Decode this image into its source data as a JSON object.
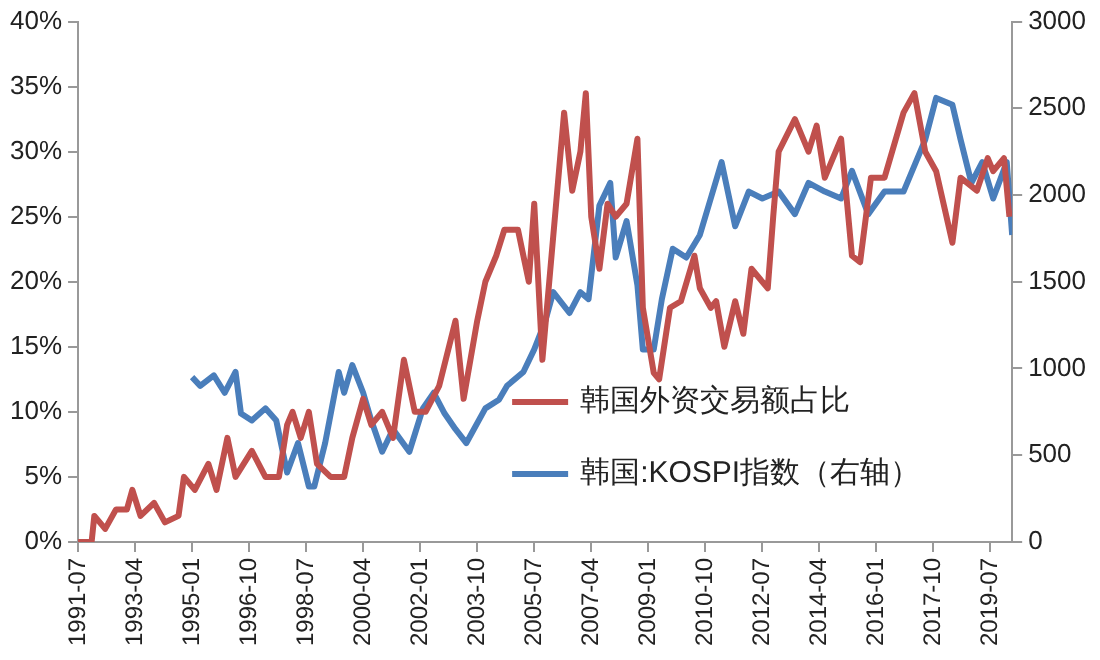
{
  "chart_data": {
    "type": "line",
    "x": [
      "1991-07",
      "1991-12",
      "1992-01",
      "1992-05",
      "1992-09",
      "1993-01",
      "1993-03",
      "1993-06",
      "1993-11",
      "1994-03",
      "1994-08",
      "1994-10",
      "1995-02",
      "1995-07",
      "1995-10",
      "1996-02",
      "1996-05",
      "1996-11",
      "1997-04",
      "1997-09",
      "1997-12",
      "1998-02",
      "1998-05",
      "1998-08",
      "1998-11",
      "1999-04",
      "1999-09",
      "1999-12",
      "2000-04",
      "2000-07",
      "2000-11",
      "2001-03",
      "2001-07",
      "2001-11",
      "2002-03",
      "2002-08",
      "2003-02",
      "2003-05",
      "2003-10",
      "2004-01",
      "2004-05",
      "2004-08",
      "2005-01",
      "2005-05",
      "2005-07",
      "2005-10",
      "2006-06",
      "2006-09",
      "2006-12",
      "2007-02",
      "2007-04",
      "2007-07",
      "2007-10",
      "2008-01",
      "2008-05",
      "2008-09",
      "2008-11",
      "2009-03",
      "2009-05",
      "2009-09",
      "2010-01",
      "2010-06",
      "2010-08",
      "2010-12",
      "2011-02",
      "2011-05",
      "2011-09",
      "2011-12",
      "2012-03",
      "2012-09",
      "2012-11",
      "2013-01",
      "2013-07",
      "2013-12",
      "2014-03",
      "2014-06",
      "2014-12",
      "2015-04",
      "2015-07",
      "2015-11",
      "2016-04",
      "2016-11",
      "2017-03",
      "2017-07",
      "2017-11",
      "2018-05",
      "2018-08",
      "2019-02",
      "2019-06",
      "2019-08",
      "2019-12",
      "2020-02"
    ],
    "series": [
      {
        "name": "韩国外资交易额占比",
        "color": "#c0504d",
        "values": [
          0,
          0,
          2,
          1,
          2.5,
          2.5,
          4,
          2,
          3,
          1.5,
          2,
          5,
          4,
          6,
          4,
          8,
          5,
          7,
          5,
          5,
          9,
          10,
          8,
          10,
          6,
          5,
          5,
          8,
          11,
          9,
          10,
          8,
          14,
          10,
          10,
          12,
          17,
          11,
          17,
          20,
          22,
          24,
          24,
          20,
          26,
          14,
          33,
          27,
          30,
          34.5,
          25,
          21,
          26,
          25,
          26,
          31,
          18,
          13,
          12.5,
          18,
          18.5,
          22,
          19.5,
          18,
          18.5,
          15,
          18.5,
          16,
          21,
          19.5,
          25,
          30,
          32.5,
          30,
          32,
          28,
          31,
          22,
          21.5,
          28,
          28,
          33,
          34.5,
          30,
          28.5,
          23,
          28,
          27,
          29.5,
          28.5,
          29.5,
          25
        ]
      },
      {
        "name": "韩国:KOSPI指数（右轴）",
        "color": "#4a7ebb",
        "axis": "y2",
        "x": [
          "1995-01",
          "1995-04",
          "1995-09",
          "1996-01",
          "1996-05",
          "1996-07",
          "1996-11",
          "1997-04",
          "1997-08",
          "1997-12",
          "1998-04",
          "1998-08",
          "1998-10",
          "1999-02",
          "1999-07",
          "1999-09",
          "1999-12",
          "2000-04",
          "2000-07",
          "2000-11",
          "2001-03",
          "2001-09",
          "2002-02",
          "2002-06",
          "2002-10",
          "2003-02",
          "2003-06",
          "2004-01",
          "2004-06",
          "2004-09",
          "2005-03",
          "2005-07",
          "2005-11",
          "2006-02",
          "2006-08",
          "2006-12",
          "2007-03",
          "2007-07",
          "2007-11",
          "2008-01",
          "2008-05",
          "2008-09",
          "2008-11",
          "2009-03",
          "2009-06",
          "2009-10",
          "2010-03",
          "2010-08",
          "2010-12",
          "2011-04",
          "2011-09",
          "2012-02",
          "2012-07",
          "2013-01",
          "2013-07",
          "2013-12",
          "2014-06",
          "2014-12",
          "2015-04",
          "2015-10",
          "2016-04",
          "2016-11",
          "2017-07",
          "2017-11",
          "2018-05",
          "2018-08",
          "2018-12",
          "2019-04",
          "2019-08",
          "2020-01",
          "2020-03"
        ],
        "values": [
          950,
          900,
          960,
          860,
          980,
          740,
          700,
          770,
          700,
          400,
          570,
          320,
          320,
          570,
          980,
          860,
          1020,
          860,
          700,
          520,
          650,
          520,
          770,
          860,
          740,
          650,
          570,
          770,
          820,
          900,
          980,
          1110,
          1270,
          1440,
          1320,
          1440,
          1400,
          1940,
          2070,
          1640,
          1850,
          1480,
          1110,
          1110,
          1400,
          1690,
          1640,
          1770,
          1980,
          2190,
          1820,
          2020,
          1980,
          2020,
          1890,
          2070,
          2020,
          1980,
          2140,
          1890,
          2020,
          2020,
          2320,
          2560,
          2520,
          2320,
          2070,
          2190,
          1980,
          2190,
          1770
        ]
      }
    ],
    "xlim": [
      "1991-07",
      "2020-03"
    ],
    "xticks": [
      "1991-07",
      "1993-04",
      "1995-01",
      "1996-10",
      "1998-07",
      "2000-04",
      "2002-01",
      "2003-10",
      "2005-07",
      "2007-04",
      "2009-01",
      "2010-10",
      "2012-07",
      "2014-04",
      "2016-01",
      "2017-10",
      "2019-07"
    ],
    "ylim": [
      0,
      40
    ],
    "yticks": [
      {
        "value": 0,
        "label": "0%"
      },
      {
        "value": 5,
        "label": "5%"
      },
      {
        "value": 10,
        "label": "10%"
      },
      {
        "value": 15,
        "label": "15%"
      },
      {
        "value": 20,
        "label": "20%"
      },
      {
        "value": 25,
        "label": "25%"
      },
      {
        "value": 30,
        "label": "30%"
      },
      {
        "value": 35,
        "label": "35%"
      },
      {
        "value": 40,
        "label": "40%"
      }
    ],
    "y2lim": [
      0,
      3000
    ],
    "y2ticks": [
      0,
      500,
      1000,
      1500,
      2000,
      2500,
      3000
    ],
    "grid": false,
    "legend": "bottom right",
    "marker": "none",
    "line_style": "solid"
  }
}
